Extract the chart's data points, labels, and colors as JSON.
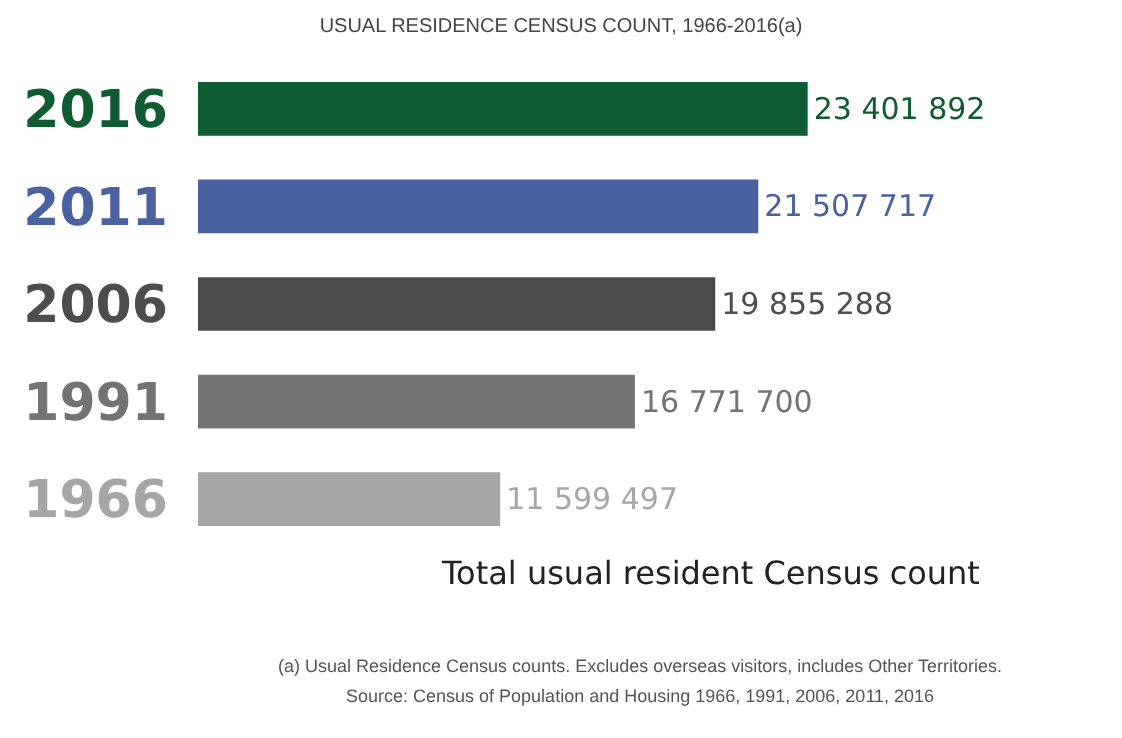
{
  "chart_data": {
    "type": "bar",
    "orientation": "horizontal",
    "title": "USUAL RESIDENCE CENSUS COUNT, 1966-2016(a)",
    "categories": [
      "2016",
      "2011",
      "2006",
      "1991",
      "1966"
    ],
    "values": [
      23401892,
      21507717,
      19855288,
      16771700,
      11599497
    ],
    "value_labels": [
      "23 401 892",
      "21 507 717",
      "19 855 288",
      "16 771 700",
      "11 599 497"
    ],
    "colors": [
      "#0f5c32",
      "#4b62a0",
      "#4d4d4d",
      "#737373",
      "#a6a6a6"
    ],
    "annotations": [
      "Total usual resident Census count",
      "(a) Usual Residence Census counts. Excludes overseas visitors, includes Other Territories.",
      "Source: Census of Population and Housing 1966, 1991, 2006, 2011, 2016"
    ]
  }
}
